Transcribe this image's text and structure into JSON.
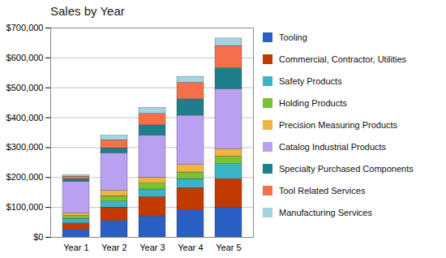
{
  "chart_data": {
    "type": "bar",
    "title": "Sales by Year",
    "stacked": true,
    "grid": true,
    "legend": "right",
    "categories": [
      "Year 1",
      "Year 2",
      "Year 3",
      "Year 4",
      "Year 5"
    ],
    "ylim": [
      0,
      700000
    ],
    "yticks": [
      {
        "value": 0,
        "label": "$0"
      },
      {
        "value": 100000,
        "label": "$100,000"
      },
      {
        "value": 200000,
        "label": "$200,000"
      },
      {
        "value": 300000,
        "label": "$300,000"
      },
      {
        "value": 400000,
        "label": "$400,000"
      },
      {
        "value": 500000,
        "label": "$500,000"
      },
      {
        "value": 600000,
        "label": "$600,000"
      },
      {
        "value": 700000,
        "label": "$700,000"
      }
    ],
    "series": [
      {
        "name": "Tooling",
        "color": "#2a5fc4",
        "values": [
          25000,
          55000,
          70000,
          90000,
          100000
        ]
      },
      {
        "name": "Commercial, Contractor, Utilities",
        "color": "#c33a00",
        "values": [
          22000,
          45000,
          65000,
          75000,
          95000
        ]
      },
      {
        "name": "Safety Products",
        "color": "#3cb4c8",
        "values": [
          15000,
          20000,
          25000,
          30000,
          50000
        ]
      },
      {
        "name": "Holding Products",
        "color": "#7ac231",
        "values": [
          10000,
          18000,
          20000,
          22000,
          25000
        ]
      },
      {
        "name": "Precision Measuring Products",
        "color": "#f0b440",
        "values": [
          8000,
          18000,
          20000,
          25000,
          25000
        ]
      },
      {
        "name": "Catalog Industrial Products",
        "color": "#b9a0f0",
        "values": [
          105000,
          125000,
          140000,
          165000,
          200000
        ]
      },
      {
        "name": "Specialty Purchased Components",
        "color": "#1d7f8a",
        "values": [
          10000,
          17000,
          35000,
          55000,
          70000
        ]
      },
      {
        "name": "Tool Related Services",
        "color": "#f5704a",
        "values": [
          8000,
          27000,
          38000,
          55000,
          75000
        ]
      },
      {
        "name": "Manufacturing Services",
        "color": "#a3d3e0",
        "values": [
          5000,
          15000,
          20000,
          20000,
          25000
        ]
      }
    ]
  }
}
